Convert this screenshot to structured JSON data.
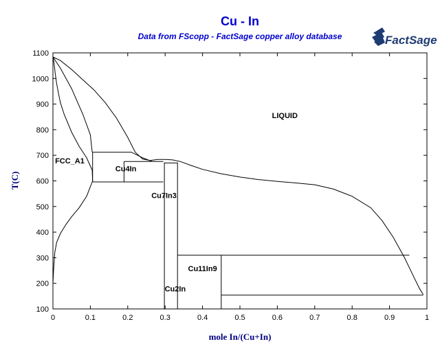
{
  "chart_data": {
    "type": "line",
    "title": "Cu - In",
    "subtitle": "Data from FScopp - FactSage copper alloy database",
    "xlabel": "mole In/(Cu+In)",
    "ylabel": "T(C)",
    "xlim": [
      0,
      1
    ],
    "ylim": [
      100,
      1100
    ],
    "x_ticks": [
      0,
      0.1,
      0.2,
      0.3,
      0.4,
      0.5,
      0.6,
      0.7,
      0.8,
      0.9,
      1
    ],
    "x_tick_labels": [
      "0",
      "0.1",
      "0.2",
      "0.3",
      "0.4",
      "0.5",
      "0.6",
      "0.7",
      "0.8",
      "0.9",
      "1"
    ],
    "y_ticks": [
      100,
      200,
      300,
      400,
      500,
      600,
      700,
      800,
      900,
      1000,
      1100
    ],
    "y_tick_labels": [
      "100",
      "200",
      "300",
      "400",
      "500",
      "600",
      "700",
      "800",
      "900",
      "1000",
      "1100"
    ],
    "grid": false,
    "logo": "FactSage",
    "labels": [
      {
        "text": "LIQUID",
        "x": 0.62,
        "y": 845
      },
      {
        "text": "FCC_A1",
        "x": 0.045,
        "y": 668
      },
      {
        "text": "Cu4In",
        "x": 0.195,
        "y": 638
      },
      {
        "text": "Cu7In3",
        "x": 0.297,
        "y": 533
      },
      {
        "text": "Cu11In9",
        "x": 0.4,
        "y": 248
      },
      {
        "text": "Cu2In",
        "x": 0.327,
        "y": 168
      }
    ],
    "series": [
      {
        "points": [
          [
            0,
            1084
          ],
          [
            0.02,
            1070
          ],
          [
            0.05,
            1035
          ],
          [
            0.08,
            995
          ],
          [
            0.11,
            955
          ],
          [
            0.14,
            905
          ],
          [
            0.17,
            845
          ],
          [
            0.2,
            770
          ],
          [
            0.22,
            712
          ],
          [
            0.24,
            685
          ],
          [
            0.26,
            680
          ],
          [
            0.28,
            684
          ],
          [
            0.3,
            684
          ],
          [
            0.32,
            682
          ],
          [
            0.34,
            676
          ],
          [
            0.37,
            660
          ],
          [
            0.4,
            645
          ],
          [
            0.45,
            628
          ],
          [
            0.5,
            615
          ],
          [
            0.55,
            605
          ],
          [
            0.6,
            598
          ],
          [
            0.65,
            592
          ],
          [
            0.7,
            585
          ],
          [
            0.75,
            568
          ],
          [
            0.8,
            540
          ],
          [
            0.85,
            495
          ],
          [
            0.88,
            445
          ],
          [
            0.91,
            380
          ],
          [
            0.94,
            300
          ],
          [
            0.96,
            240
          ],
          [
            0.98,
            180
          ],
          [
            0.99,
            156
          ]
        ]
      },
      {
        "points": [
          [
            0,
            1084
          ],
          [
            0.02,
            1040
          ],
          [
            0.05,
            960
          ],
          [
            0.08,
            860
          ],
          [
            0.1,
            780
          ],
          [
            0.105,
            712
          ]
        ]
      },
      {
        "points": [
          [
            0,
            1084
          ],
          [
            0.003,
            1060
          ],
          [
            0.006,
            1020
          ],
          [
            0.01,
            980
          ],
          [
            0.015,
            940
          ],
          [
            0.02,
            905
          ],
          [
            0.03,
            860
          ],
          [
            0.05,
            790
          ],
          [
            0.07,
            735
          ],
          [
            0.09,
            690
          ],
          [
            0.105,
            642
          ],
          [
            0.106,
            596
          ]
        ]
      },
      {
        "points": [
          [
            0.105,
            596
          ],
          [
            0.09,
            540
          ],
          [
            0.07,
            495
          ],
          [
            0.05,
            460
          ],
          [
            0.035,
            430
          ],
          [
            0.02,
            395
          ],
          [
            0.01,
            360
          ],
          [
            0.005,
            320
          ],
          [
            0.002,
            260
          ],
          [
            0,
            200
          ]
        ]
      },
      {
        "points": [
          [
            0.105,
            712
          ],
          [
            0.21,
            712
          ],
          [
            0.24,
            690
          ],
          [
            0.265,
            676
          ]
        ]
      },
      {
        "points": [
          [
            0.19,
            676
          ],
          [
            0.295,
            676
          ]
        ]
      },
      {
        "points": [
          [
            0.106,
            596
          ],
          [
            0.295,
            596
          ]
        ]
      },
      {
        "points": [
          [
            0.106,
            596
          ],
          [
            0.106,
            712
          ]
        ]
      },
      {
        "points": [
          [
            0.19,
            596
          ],
          [
            0.19,
            676
          ]
        ]
      },
      {
        "points": [
          [
            0.298,
            100
          ],
          [
            0.298,
            672
          ]
        ]
      },
      {
        "points": [
          [
            0.298,
            670
          ],
          [
            0.333,
            670
          ]
        ]
      },
      {
        "points": [
          [
            0.333,
            100
          ],
          [
            0.333,
            672
          ]
        ]
      },
      {
        "points": [
          [
            0.333,
            310
          ],
          [
            0.953,
            310
          ]
        ]
      },
      {
        "points": [
          [
            0.45,
            100
          ],
          [
            0.45,
            310
          ]
        ]
      },
      {
        "points": [
          [
            0.45,
            154
          ],
          [
            0.99,
            154
          ]
        ]
      }
    ]
  }
}
